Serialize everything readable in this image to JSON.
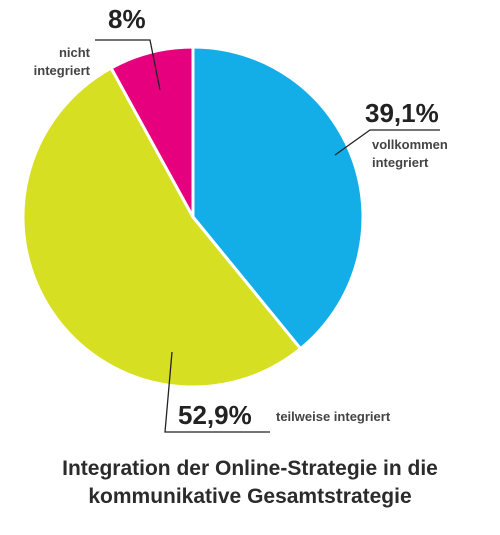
{
  "chart_data": {
    "type": "pie",
    "title": "Integration der Online-Strategie in die kommunikative Gesamtstrategie",
    "categories": [
      "vollkommen integriert",
      "teilweise integriert",
      "nicht integriert"
    ],
    "values": [
      39.1,
      52.9,
      8
    ],
    "value_labels": [
      "39,1%",
      "52,9%",
      "8%"
    ],
    "colors": [
      "#13aee8",
      "#d7df23",
      "#e6007e"
    ]
  }
}
